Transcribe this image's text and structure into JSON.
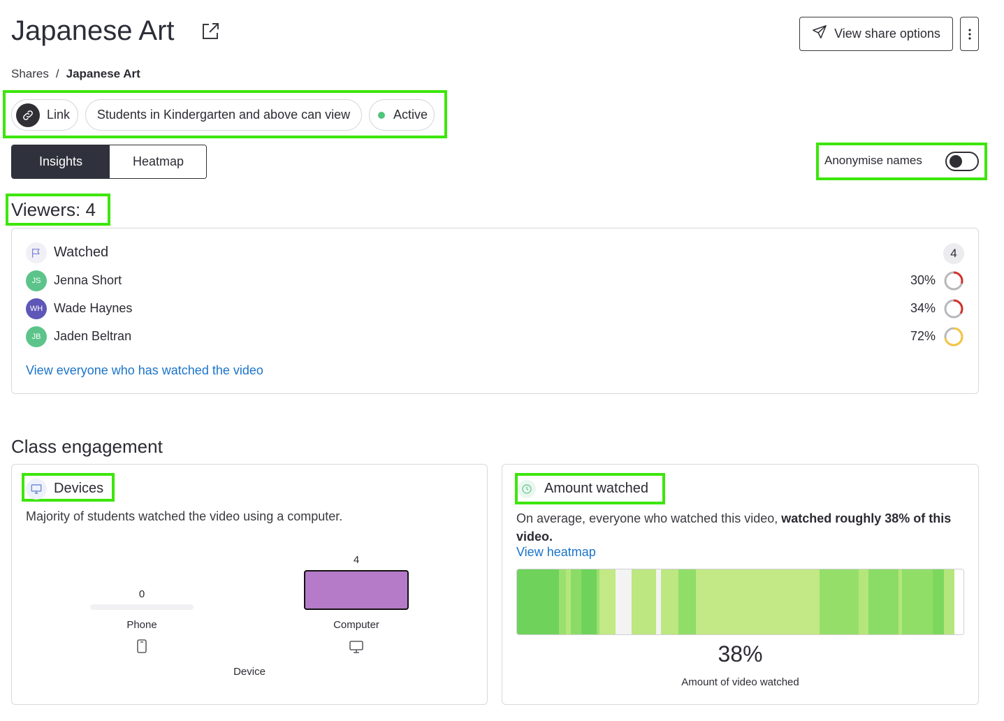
{
  "header": {
    "title": "Japanese Art",
    "share_button_label": "View share options"
  },
  "breadcrumb": {
    "root": "Shares",
    "separator": "/",
    "current": "Japanese Art"
  },
  "chips": {
    "link": "Link",
    "audience": "Students in Kindergarten and above can view",
    "status": "Active"
  },
  "tabs": [
    {
      "label": "Insights",
      "active": true
    },
    {
      "label": "Heatmap",
      "active": false
    }
  ],
  "anonymise": {
    "label": "Anonymise names",
    "enabled": false
  },
  "viewers": {
    "label": "Viewers: 4",
    "watched_title": "Watched",
    "count": "4",
    "list": [
      {
        "initials": "JS",
        "name": "Jenna Short",
        "percent": "30%",
        "progress": 0.3,
        "color": "#5cc48a",
        "ring_color": "#d2322b"
      },
      {
        "initials": "WH",
        "name": "Wade Haynes",
        "percent": "34%",
        "progress": 0.34,
        "color": "#5e57b8",
        "ring_color": "#d2322b"
      },
      {
        "initials": "JB",
        "name": "Jaden Beltran",
        "percent": "72%",
        "progress": 0.72,
        "color": "#5cc48a",
        "ring_color": "#f5c542"
      }
    ],
    "view_all_link": "View everyone who has watched the video"
  },
  "engagement": {
    "section_title": "Class engagement",
    "devices": {
      "title": "Devices",
      "description": "Majority of students watched the video using a computer."
    },
    "amount": {
      "title": "Amount watched",
      "description_plain": "On average, everyone who watched this video, ",
      "description_bold": "watched roughly 38% of this video.",
      "heatmap_link": "View heatmap",
      "percent": "38%",
      "caption": "Amount of video watched",
      "heat_segments": [
        {
          "w": 9.4,
          "c": "#6fd35b"
        },
        {
          "w": 1.6,
          "c": "#9ae06e"
        },
        {
          "w": 1.0,
          "c": "#b5e67b"
        },
        {
          "w": 2.4,
          "c": "#8bdc66"
        },
        {
          "w": 3.4,
          "c": "#6fd35b"
        },
        {
          "w": 0.6,
          "c": "#9ae06e"
        },
        {
          "w": 3.6,
          "c": "#c2e985"
        },
        {
          "w": 3.6,
          "c": "#f3f3f3"
        },
        {
          "w": 5.6,
          "c": "#bce781"
        },
        {
          "w": 1.0,
          "c": "#f3f3f3"
        },
        {
          "w": 4.0,
          "c": "#bce781"
        },
        {
          "w": 3.8,
          "c": "#90dd68"
        },
        {
          "w": 27.8,
          "c": "#c2e985"
        },
        {
          "w": 8.8,
          "c": "#95de6a"
        },
        {
          "w": 2.2,
          "c": "#b5e67b"
        },
        {
          "w": 6.6,
          "c": "#8bdc66"
        },
        {
          "w": 0.8,
          "c": "#b5e67b"
        },
        {
          "w": 7.0,
          "c": "#90dd68"
        },
        {
          "w": 2.4,
          "c": "#7cd75e"
        },
        {
          "w": 2.4,
          "c": "#b5e67b"
        }
      ]
    }
  },
  "chart_data": {
    "type": "bar",
    "categories": [
      "Phone",
      "Computer"
    ],
    "values": [
      0,
      4
    ],
    "xlabel": "Device",
    "ylabel": "",
    "bar_color": "#b57ac8"
  }
}
